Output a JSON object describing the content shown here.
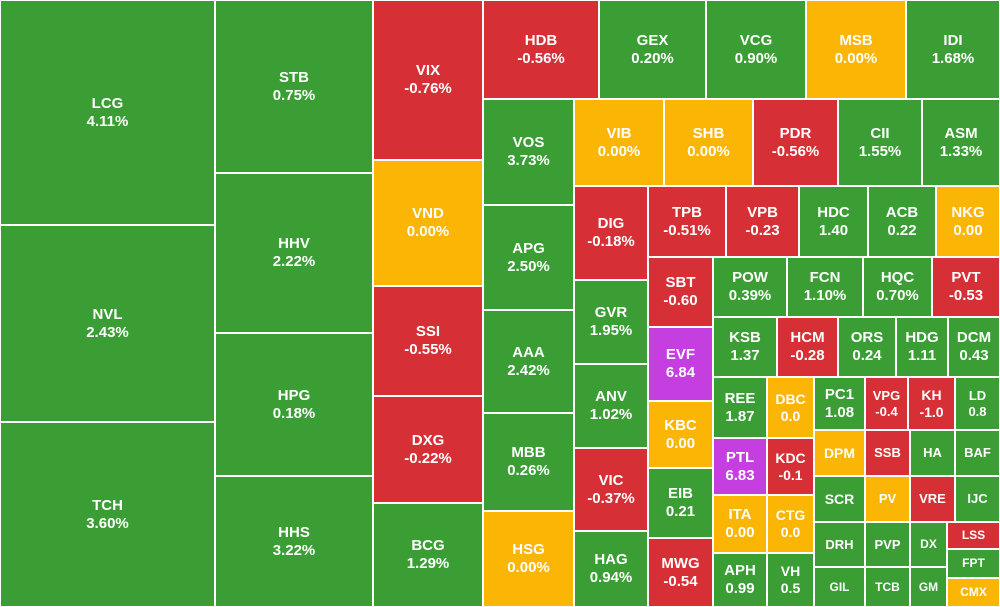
{
  "chart_data": {
    "type": "heatmap",
    "colors": {
      "up": "#3a9e35",
      "down": "#d62f35",
      "flat": "#fbb505",
      "ceiling": "#c53fe0"
    },
    "tiles": [
      {
        "symbol": "LCG",
        "value": "4.11%",
        "status": "up"
      },
      {
        "symbol": "NVL",
        "value": "2.43%",
        "status": "up"
      },
      {
        "symbol": "TCH",
        "value": "3.60%",
        "status": "up"
      },
      {
        "symbol": "STB",
        "value": "0.75%",
        "status": "up"
      },
      {
        "symbol": "HHV",
        "value": "2.22%",
        "status": "up"
      },
      {
        "symbol": "HPG",
        "value": "0.18%",
        "status": "up"
      },
      {
        "symbol": "HHS",
        "value": "3.22%",
        "status": "up"
      },
      {
        "symbol": "VIX",
        "value": "-0.76%",
        "status": "down"
      },
      {
        "symbol": "VND",
        "value": "0.00%",
        "status": "flat"
      },
      {
        "symbol": "SSI",
        "value": "-0.55%",
        "status": "down"
      },
      {
        "symbol": "DXG",
        "value": "-0.22%",
        "status": "down"
      },
      {
        "symbol": "BCG",
        "value": "1.29%",
        "status": "up"
      },
      {
        "symbol": "HDB",
        "value": "-0.56%",
        "status": "down"
      },
      {
        "symbol": "GEX",
        "value": "0.20%",
        "status": "up"
      },
      {
        "symbol": "VCG",
        "value": "0.90%",
        "status": "up"
      },
      {
        "symbol": "MSB",
        "value": "0.00%",
        "status": "flat"
      },
      {
        "symbol": "IDI",
        "value": "1.68%",
        "status": "up"
      },
      {
        "symbol": "VOS",
        "value": "3.73%",
        "status": "up"
      },
      {
        "symbol": "APG",
        "value": "2.50%",
        "status": "up"
      },
      {
        "symbol": "AAA",
        "value": "2.42%",
        "status": "up"
      },
      {
        "symbol": "MBB",
        "value": "0.26%",
        "status": "up"
      },
      {
        "symbol": "HSG",
        "value": "0.00%",
        "status": "flat"
      },
      {
        "symbol": "VIB",
        "value": "0.00%",
        "status": "flat"
      },
      {
        "symbol": "SHB",
        "value": "0.00%",
        "status": "flat"
      },
      {
        "symbol": "PDR",
        "value": "-0.56%",
        "status": "down"
      },
      {
        "symbol": "CII",
        "value": "1.55%",
        "status": "up"
      },
      {
        "symbol": "ASM",
        "value": "1.33%",
        "status": "up"
      },
      {
        "symbol": "DIG",
        "value": "-0.18%",
        "status": "down"
      },
      {
        "symbol": "GVR",
        "value": "1.95%",
        "status": "up"
      },
      {
        "symbol": "ANV",
        "value": "1.02%",
        "status": "up"
      },
      {
        "symbol": "VIC",
        "value": "-0.37%",
        "status": "down"
      },
      {
        "symbol": "HAG",
        "value": "0.94%",
        "status": "up"
      },
      {
        "symbol": "TPB",
        "value": "-0.51%",
        "status": "down"
      },
      {
        "symbol": "VPB",
        "value": "-0.23",
        "status": "down"
      },
      {
        "symbol": "HDC",
        "value": "1.40",
        "status": "up"
      },
      {
        "symbol": "ACB",
        "value": "0.22",
        "status": "up"
      },
      {
        "symbol": "NKG",
        "value": "0.00",
        "status": "flat"
      },
      {
        "symbol": "SBT",
        "value": "-0.60",
        "status": "down"
      },
      {
        "symbol": "EVF",
        "value": "6.84",
        "status": "ceiling"
      },
      {
        "symbol": "KBC",
        "value": "0.00",
        "status": "flat"
      },
      {
        "symbol": "EIB",
        "value": "0.21",
        "status": "up"
      },
      {
        "symbol": "MWG",
        "value": "-0.54",
        "status": "down"
      },
      {
        "symbol": "POW",
        "value": "0.39%",
        "status": "up"
      },
      {
        "symbol": "FCN",
        "value": "1.10%",
        "status": "up"
      },
      {
        "symbol": "HQC",
        "value": "0.70%",
        "status": "up"
      },
      {
        "symbol": "PVT",
        "value": "-0.53",
        "status": "down"
      },
      {
        "symbol": "KSB",
        "value": "1.37",
        "status": "up"
      },
      {
        "symbol": "HCM",
        "value": "-0.28",
        "status": "down"
      },
      {
        "symbol": "ORS",
        "value": "0.24",
        "status": "up"
      },
      {
        "symbol": "HDG",
        "value": "1.11",
        "status": "up"
      },
      {
        "symbol": "DCM",
        "value": "0.43",
        "status": "up"
      },
      {
        "symbol": "REE",
        "value": "1.87",
        "status": "up"
      },
      {
        "symbol": "DBC",
        "value": "0.0",
        "status": "flat"
      },
      {
        "symbol": "PC1",
        "value": "1.08",
        "status": "up"
      },
      {
        "symbol": "VPG",
        "value": "-0.4",
        "status": "down"
      },
      {
        "symbol": "KH",
        "value": "-1.0",
        "status": "down"
      },
      {
        "symbol": "LD",
        "value": "0.8",
        "status": "up"
      },
      {
        "symbol": "PTL",
        "value": "6.83",
        "status": "ceiling"
      },
      {
        "symbol": "KDC",
        "value": "-0.1",
        "status": "down"
      },
      {
        "symbol": "DPM",
        "value": "",
        "status": "flat"
      },
      {
        "symbol": "SSB",
        "value": "",
        "status": "down"
      },
      {
        "symbol": "HA",
        "value": "",
        "status": "up"
      },
      {
        "symbol": "BAF",
        "value": "",
        "status": "up"
      },
      {
        "symbol": "ITA",
        "value": "0.00",
        "status": "flat"
      },
      {
        "symbol": "CTG",
        "value": "0.0",
        "status": "flat"
      },
      {
        "symbol": "SCR",
        "value": "",
        "status": "up"
      },
      {
        "symbol": "PV",
        "value": "",
        "status": "flat"
      },
      {
        "symbol": "VRE",
        "value": "",
        "status": "down"
      },
      {
        "symbol": "IJC",
        "value": "",
        "status": "up"
      },
      {
        "symbol": "DRH",
        "value": "",
        "status": "up"
      },
      {
        "symbol": "PVP",
        "value": "",
        "status": "up"
      },
      {
        "symbol": "DX",
        "value": "",
        "status": "up"
      },
      {
        "symbol": "LSS",
        "value": "",
        "status": "down"
      },
      {
        "symbol": "FPT",
        "value": "",
        "status": "up"
      },
      {
        "symbol": "APH",
        "value": "0.99",
        "status": "up"
      },
      {
        "symbol": "VH",
        "value": "0.5",
        "status": "up"
      },
      {
        "symbol": "GIL",
        "value": "",
        "status": "up"
      },
      {
        "symbol": "TCB",
        "value": "",
        "status": "up"
      },
      {
        "symbol": "GM",
        "value": "",
        "status": "up"
      },
      {
        "symbol": "CMX",
        "value": "",
        "status": "flat"
      }
    ]
  }
}
